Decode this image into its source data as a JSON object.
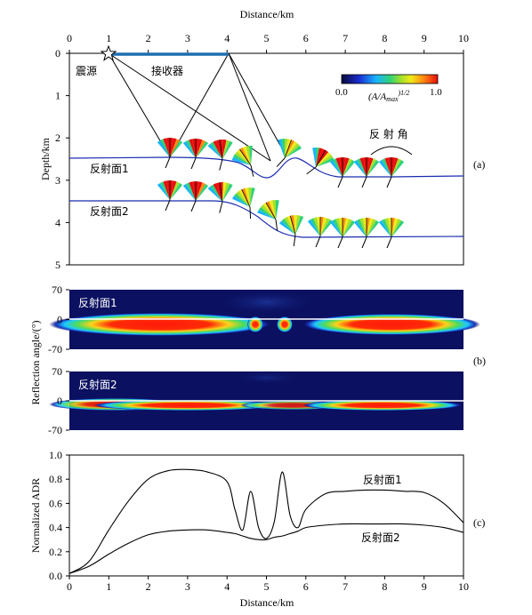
{
  "panel_a": {
    "x_axis_title": "Distance/km",
    "y_axis_title": "Depth/km",
    "x_ticks": [
      "0",
      "1",
      "2",
      "3",
      "4",
      "5",
      "6",
      "7",
      "8",
      "9",
      "10"
    ],
    "y_ticks": [
      "0",
      "1",
      "2",
      "3",
      "4",
      "5"
    ],
    "label": "(a)",
    "source_label": "震源",
    "receiver_label": "接收器",
    "reflector1_label": "反射面1",
    "reflector2_label": "反射面2",
    "reflection_angle_label": "反 射 角",
    "colorbar": {
      "min_label": "0.0",
      "max_label": "1.0",
      "title": "(A/A",
      "title_sub": "max",
      "title_sup": ")1/2",
      "colors": [
        "#0a0a3a",
        "#1a2cd0",
        "#19b4ff",
        "#2fd27a",
        "#a4e02a",
        "#f0ea1a",
        "#ff8a10",
        "#e80c0c"
      ]
    }
  },
  "panel_b": {
    "y_axis_title": "Reflection angle/(°)",
    "label": "(b)",
    "top": {
      "title": "反射面1",
      "y_ticks": [
        "70",
        "0",
        "-70"
      ]
    },
    "bottom": {
      "title": "反射面2",
      "y_ticks": [
        "70",
        "0",
        "-70"
      ]
    }
  },
  "panel_c": {
    "x_axis_title": "Distance/km",
    "y_axis_title": "Normalized ADR",
    "label": "(c)",
    "x_ticks": [
      "0",
      "1",
      "2",
      "3",
      "4",
      "5",
      "6",
      "7",
      "8",
      "9",
      "10"
    ],
    "y_ticks": [
      "0.0",
      "0.2",
      "0.4",
      "0.6",
      "0.8",
      "1.0"
    ],
    "series": [
      {
        "name": "反射面1"
      },
      {
        "name": "反射面2"
      }
    ]
  },
  "chart_data": [
    {
      "type": "line",
      "title": "",
      "xlabel": "Distance/km",
      "ylabel": "Normalized ADR",
      "xlim": [
        0,
        10
      ],
      "ylim": [
        0,
        1.0
      ],
      "x": [
        0,
        0.5,
        1,
        1.5,
        2,
        2.5,
        3,
        3.5,
        4,
        4.2,
        4.4,
        4.6,
        4.8,
        5,
        5.2,
        5.4,
        5.6,
        5.8,
        6,
        6.5,
        7,
        7.5,
        8,
        8.5,
        9,
        9.5,
        10
      ],
      "series": [
        {
          "name": "反射面1",
          "values": [
            0.02,
            0.12,
            0.38,
            0.62,
            0.8,
            0.87,
            0.88,
            0.86,
            0.78,
            0.55,
            0.38,
            0.7,
            0.4,
            0.31,
            0.45,
            0.86,
            0.5,
            0.4,
            0.55,
            0.68,
            0.7,
            0.71,
            0.71,
            0.7,
            0.69,
            0.6,
            0.44
          ]
        },
        {
          "name": "反射面2",
          "values": [
            0.02,
            0.08,
            0.18,
            0.27,
            0.34,
            0.37,
            0.38,
            0.38,
            0.36,
            0.35,
            0.33,
            0.31,
            0.3,
            0.3,
            0.32,
            0.33,
            0.35,
            0.37,
            0.4,
            0.42,
            0.43,
            0.43,
            0.43,
            0.43,
            0.42,
            0.4,
            0.36
          ]
        }
      ]
    }
  ]
}
